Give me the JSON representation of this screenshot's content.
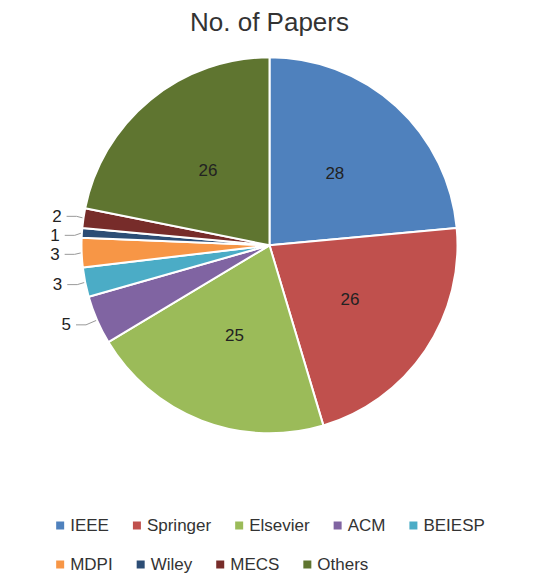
{
  "chart_data": {
    "type": "pie",
    "title": "No. of Papers",
    "categories": [
      "IEEE",
      "Springer",
      "Elsevier",
      "ACM",
      "BEIESP",
      "MDPI",
      "Wiley",
      "MECS",
      "Others"
    ],
    "values": [
      28,
      26,
      25,
      5,
      3,
      3,
      1,
      2,
      26
    ],
    "colors": [
      "#4f81bd",
      "#c0504d",
      "#9bbb59",
      "#8064a2",
      "#4bacc6",
      "#f79646",
      "#2c4d75",
      "#772c2a",
      "#5f7530"
    ],
    "data_labels": true,
    "legend": "bottom"
  }
}
